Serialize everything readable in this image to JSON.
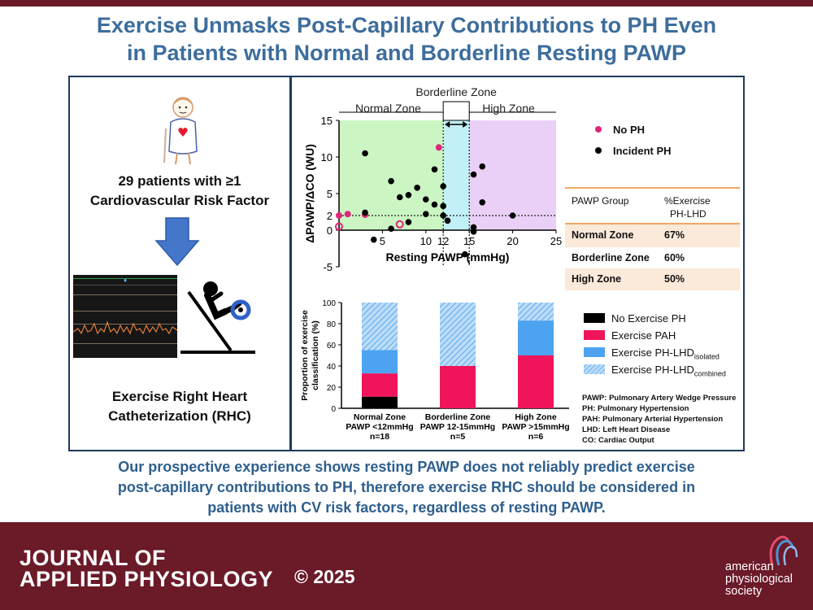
{
  "title": {
    "line1": "Exercise Unmasks Post-Capillary Contributions to PH Even",
    "line2": "in Patients with Normal and Borderline Resting PAWP"
  },
  "left_panel": {
    "patients_line1": "29 patients with ≥1",
    "patients_line2": "Cardiovascular Risk Factor",
    "rhc_line1": "Exercise Right Heart",
    "rhc_line2": "Catheterization (RHC)"
  },
  "scatter": {
    "zone_labels": {
      "borderline": "Borderline Zone",
      "normal": "Normal Zone",
      "high": "High Zone"
    },
    "legend": {
      "no_ph": "No PH",
      "incident_ph": "Incident PH"
    },
    "colors": {
      "no_ph": "#e0267a",
      "incident_ph": "#000000",
      "normal_zone": "#ccf5c4",
      "borderline_zone": "#c2f0f7",
      "high_zone": "#ead0f7"
    }
  },
  "pawp_table": {
    "header_col1": "PAWP Group",
    "header_col2a": "%Exercise",
    "header_col2b": "PH-LHD",
    "rows": [
      {
        "group": "Normal Zone",
        "pct": "67%"
      },
      {
        "group": "Borderline Zone",
        "pct": "60%"
      },
      {
        "group": "High Zone",
        "pct": "50%"
      }
    ],
    "colors": {
      "shade": "#fbe9d9",
      "line": "#f0a861"
    }
  },
  "bar_legend": {
    "no_ex": "No Exercise PH",
    "pah": "Exercise PAH",
    "iso_main": "Exercise PH-LHD",
    "iso_sub": "isolated",
    "comb_main": "Exercise PH-LHD",
    "comb_sub": "combined",
    "colors": {
      "no_ex": "#000000",
      "pah": "#f0145a",
      "iso": "#4da3f0",
      "comb": "#9cc9f4"
    }
  },
  "abbreviations": [
    "PAWP: Pulmonary Artery Wedge Pressure",
    "PH: Pulmonary Hypertension",
    "PAH: Pulmonary Arterial Hypertension",
    "LHD: Left Heart Disease",
    "CO: Cardiac Output"
  ],
  "conclusion": {
    "line1": "Our prospective experience shows resting PAWP does not reliably predict exercise",
    "line2": "post-capillary contributions to PH, therefore exercise RHC should be considered in",
    "line3": "patients with CV risk factors, regardless of resting PAWP."
  },
  "footer": {
    "journal_line1": "JOURNAL OF",
    "journal_line2": "APPLIED PHYSIOLOGY",
    "copyright": "© 2025",
    "society_line1": "american",
    "society_line2": "physiological",
    "society_line3": "society"
  },
  "chart_data": [
    {
      "type": "scatter",
      "title": "",
      "xlabel": "Resting PAWP (mmHg)",
      "ylabel": "ΔPAWP/ΔCO (WU)",
      "xlim": [
        0,
        25
      ],
      "ylim": [
        -5,
        15
      ],
      "xticks": [
        5,
        10,
        12,
        15,
        20,
        25
      ],
      "yticks": [
        -5,
        0,
        2,
        5,
        10,
        15
      ],
      "reference_lines": {
        "x": [
          12,
          15
        ],
        "y": 2
      },
      "zones": [
        {
          "name": "Normal Zone",
          "from": 0,
          "to": 12
        },
        {
          "name": "Borderline Zone",
          "from": 12,
          "to": 15
        },
        {
          "name": "High Zone",
          "from": 15,
          "to": 25
        }
      ],
      "series": [
        {
          "name": "No PH",
          "points": [
            [
              0,
              2
            ],
            [
              1,
              2.2
            ],
            [
              3,
              2.1
            ],
            [
              11.5,
              11.3
            ]
          ],
          "open_points": [
            [
              0,
              0.5
            ],
            [
              7,
              0.8
            ]
          ]
        },
        {
          "name": "Incident PH",
          "points": [
            [
              3,
              10.5
            ],
            [
              3,
              2.4
            ],
            [
              4,
              -1.3
            ],
            [
              6,
              6.7
            ],
            [
              6,
              0.2
            ],
            [
              7,
              4.5
            ],
            [
              8,
              4.8
            ],
            [
              8,
              1.1
            ],
            [
              9,
              5.8
            ],
            [
              10,
              2.2
            ],
            [
              10,
              4.2
            ],
            [
              11,
              3.5
            ],
            [
              11,
              8.3
            ],
            [
              12,
              3.3
            ],
            [
              12,
              6
            ],
            [
              12,
              2
            ],
            [
              12.5,
              1.3
            ],
            [
              14.5,
              -3.3
            ],
            [
              15.5,
              7.6
            ],
            [
              15.5,
              0.4
            ],
            [
              15.5,
              -0.2
            ],
            [
              16.5,
              3.8
            ],
            [
              16.5,
              8.7
            ],
            [
              20,
              2
            ]
          ]
        }
      ]
    },
    {
      "type": "bar",
      "stacked": true,
      "ylabel_line1": "Proportion of exercise",
      "ylabel_line2": "classification (%)",
      "ylim": [
        0,
        100
      ],
      "yticks": [
        0,
        20,
        40,
        60,
        80,
        100
      ],
      "categories": [
        {
          "line1": "Normal Zone",
          "line2": "PAWP <12mmHg",
          "line3": "n=18"
        },
        {
          "line1": "Borderline Zone",
          "line2": "PAWP 12-15mmHg",
          "line3": "n=5"
        },
        {
          "line1": "High Zone",
          "line2": "PAWP >15mmHg",
          "line3": "n=6"
        }
      ],
      "series": [
        {
          "name": "No Exercise PH",
          "values": [
            11,
            0,
            0
          ]
        },
        {
          "name": "Exercise PAH",
          "values": [
            22,
            40,
            50
          ]
        },
        {
          "name": "Exercise PH-LHD isolated",
          "values": [
            22,
            0,
            33
          ]
        },
        {
          "name": "Exercise PH-LHD combined",
          "values": [
            45,
            60,
            17
          ]
        }
      ]
    }
  ]
}
